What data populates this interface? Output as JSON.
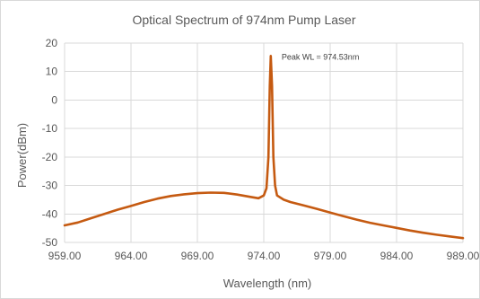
{
  "chart_data": {
    "type": "line",
    "title": "Optical Spectrum of 974nm Pump Laser",
    "xlabel": "Wavelength (nm)",
    "ylabel": "Power(dBm)",
    "xlim": [
      959,
      989
    ],
    "ylim": [
      -50,
      20
    ],
    "x_ticks": [
      "959.00",
      "964.00",
      "969.00",
      "974.00",
      "979.00",
      "984.00",
      "989.00"
    ],
    "y_ticks": [
      "20",
      "10",
      "0",
      "-10",
      "-20",
      "-30",
      "-40",
      "-50"
    ],
    "grid": "vertical and horizontal major gridlines",
    "legend": "none",
    "annotation": {
      "text": "Peak WL = 974.53nm",
      "x": 974.53,
      "y": 15.5
    },
    "series": [
      {
        "color": "#c55a11",
        "points": [
          [
            959.0,
            -44
          ],
          [
            960.0,
            -43
          ],
          [
            961.0,
            -41.5
          ],
          [
            962.0,
            -40
          ],
          [
            963.0,
            -38.5
          ],
          [
            964.0,
            -37.2
          ],
          [
            965.0,
            -35.8
          ],
          [
            966.0,
            -34.6
          ],
          [
            967.0,
            -33.7
          ],
          [
            968.0,
            -33.1
          ],
          [
            969.0,
            -32.7
          ],
          [
            970.0,
            -32.5
          ],
          [
            971.0,
            -32.6
          ],
          [
            972.0,
            -33.2
          ],
          [
            973.0,
            -34
          ],
          [
            973.6,
            -34.5
          ],
          [
            974.0,
            -33.5
          ],
          [
            974.2,
            -31
          ],
          [
            974.35,
            -20
          ],
          [
            974.45,
            5
          ],
          [
            974.53,
            15.5
          ],
          [
            974.62,
            5
          ],
          [
            974.72,
            -20
          ],
          [
            974.85,
            -30
          ],
          [
            975.0,
            -33.5
          ],
          [
            975.5,
            -35
          ],
          [
            976.0,
            -35.8
          ],
          [
            977.0,
            -37
          ],
          [
            978.0,
            -38.2
          ],
          [
            979.0,
            -39.5
          ],
          [
            980.0,
            -40.8
          ],
          [
            981.0,
            -42
          ],
          [
            982.0,
            -43.1
          ],
          [
            983.0,
            -44
          ],
          [
            984.0,
            -44.9
          ],
          [
            985.0,
            -45.8
          ],
          [
            986.0,
            -46.6
          ],
          [
            987.0,
            -47.3
          ],
          [
            988.0,
            -47.9
          ],
          [
            989.0,
            -48.5
          ]
        ]
      }
    ]
  }
}
